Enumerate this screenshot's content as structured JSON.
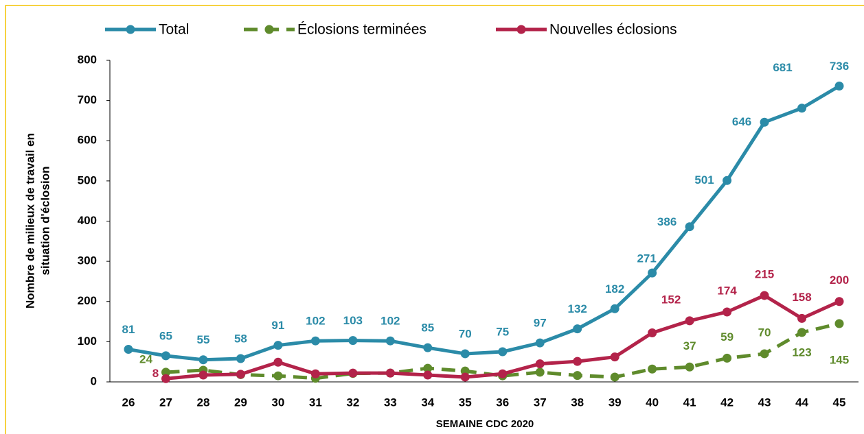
{
  "chart_data": {
    "type": "line",
    "ylabel": [
      "Nombre de milieux de travail en",
      "situation d'éclosion"
    ],
    "xlabel": "SEMAINE CDC 2020",
    "categories": [
      "26",
      "27",
      "28",
      "29",
      "30",
      "31",
      "32",
      "33",
      "34",
      "35",
      "36",
      "37",
      "38",
      "39",
      "40",
      "41",
      "42",
      "43",
      "44",
      "45"
    ],
    "ylim": [
      0,
      800
    ],
    "yticks": [
      0,
      100,
      200,
      300,
      400,
      500,
      600,
      700,
      800
    ],
    "legend": "top",
    "series": [
      {
        "name": "Total",
        "color": "#2b8ba8",
        "dash": false,
        "values": [
          81,
          65,
          55,
          58,
          91,
          102,
          103,
          102,
          85,
          70,
          75,
          97,
          132,
          182,
          271,
          386,
          501,
          646,
          681,
          736
        ],
        "value_labels": [
          "81",
          "65",
          "55",
          "58",
          "91",
          "102",
          "103",
          "102",
          "85",
          "70",
          "75",
          "97",
          "132",
          "182",
          "271",
          "386",
          "501",
          "646",
          "681",
          "736"
        ]
      },
      {
        "name": "Éclosions terminées",
        "color": "#5f8b2c",
        "dash": true,
        "values": [
          null,
          24,
          29,
          18,
          15,
          9,
          21,
          22,
          34,
          27,
          15,
          24,
          16,
          12,
          32,
          37,
          59,
          70,
          123,
          145
        ],
        "value_labels": [
          null,
          "24",
          null,
          null,
          null,
          null,
          null,
          null,
          null,
          null,
          null,
          null,
          null,
          null,
          null,
          "37",
          "59",
          "70",
          "123",
          "145"
        ]
      },
      {
        "name": "Nouvelles éclosions",
        "color": "#b3234a",
        "dash": false,
        "values": [
          null,
          8,
          17,
          19,
          49,
          20,
          22,
          22,
          17,
          12,
          20,
          45,
          51,
          62,
          122,
          152,
          174,
          215,
          158,
          200
        ],
        "value_labels": [
          null,
          "8",
          null,
          null,
          null,
          null,
          null,
          null,
          null,
          null,
          null,
          null,
          null,
          null,
          null,
          "152",
          "174",
          "215",
          "158",
          "200"
        ]
      }
    ]
  }
}
